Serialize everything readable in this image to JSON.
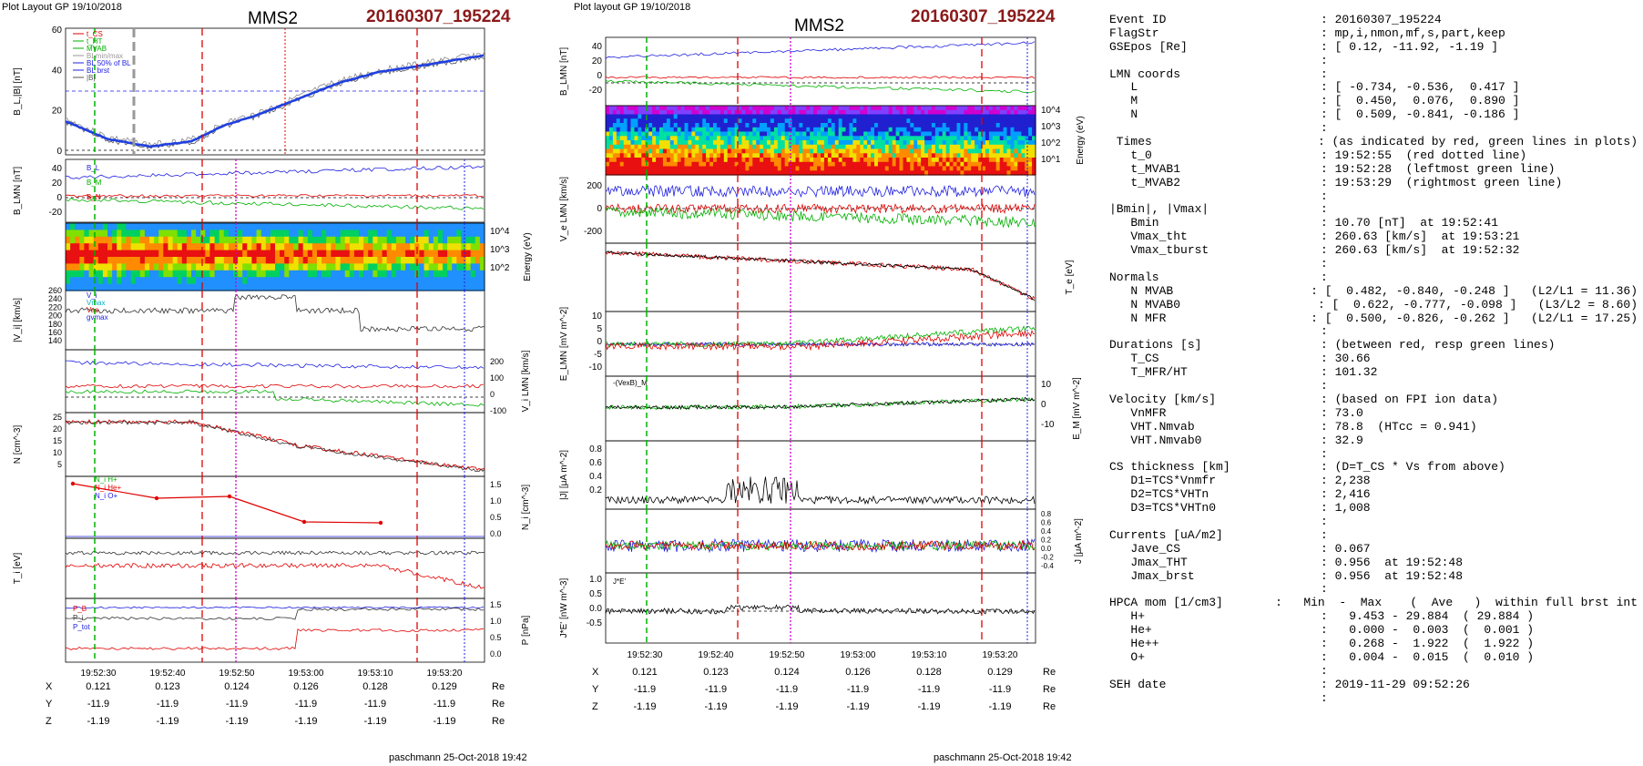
{
  "header": {
    "left_title": "Plot Layout GP 19/10/2018",
    "mid_title": "Plot layout GP 19/10/2018",
    "spacecraft": "MMS2",
    "event_id": "20160307_195224",
    "footer": "paschmann 25-Oct-2018 19:42"
  },
  "left_panels": {
    "b_ylabel": "B_L,|B| [nT]",
    "b_yticks": [
      "60",
      "40",
      "20",
      "0"
    ],
    "b_legend": [
      "t_CS",
      "t_HT",
      "MVAB",
      "BLmin/max",
      "BL 50% of BL",
      "BL brst",
      "|B|"
    ],
    "blmn_ylabel": "B_LMN [nT]",
    "blmn_yticks": [
      "40",
      "20",
      "0",
      "-20"
    ],
    "blmn_labels": [
      "B_L",
      "B_M",
      "B_N"
    ],
    "energy_ylabel": "Energy (eV)",
    "energy_yticks": [
      "10^4",
      "10^3",
      "10^2"
    ],
    "vi_ylabel": "|V_i| [km/s]",
    "vi_yticks": [
      "260",
      "240",
      "220",
      "200",
      "180",
      "160",
      "140"
    ],
    "vi_labels": [
      "V_i",
      "Vmax",
      "Vas",
      "gvmax"
    ],
    "vilmn_ylabel": "V_i LMN [km/s]",
    "vilmn_yticks": [
      "200",
      "100",
      "0",
      "-100"
    ],
    "n_ylabel": "N [cm^-3]",
    "n_yticks": [
      "25",
      "20",
      "15",
      "10",
      "5"
    ],
    "ni_ylabel": "N_i [cm^-3]",
    "ni_yticks": [
      "1.5",
      "1.0",
      "0.5",
      "0.0"
    ],
    "ni_legend": [
      "N_i H+",
      "N_i He+",
      "N_i O+"
    ],
    "ti_ylabel": "T_i [eV]",
    "p_ylabel": "P [nPa]",
    "p_yticks": [
      "1.5",
      "1.0",
      "0.5",
      "0.0"
    ],
    "p_labels": [
      "P_B",
      "P_i",
      "P_tot"
    ],
    "xticks": [
      "19:52:30",
      "19:52:40",
      "19:52:50",
      "19:53:00",
      "19:53:10",
      "19:53:20"
    ]
  },
  "mid_panels": {
    "blmn_ylabel": "B_LMN [nT]",
    "blmn_yticks": [
      "40",
      "20",
      "0",
      "-20"
    ],
    "energy_ylabel": "Energy (eV)",
    "energy_yticks": [
      "10^4",
      "10^3",
      "10^2",
      "10^1"
    ],
    "ve_ylabel": "V_e LMN [km/s]",
    "ve_yticks": [
      "200",
      "0",
      "-200"
    ],
    "te_ylabel": "T_e [eV]",
    "e_ylabel": "E_LMN [mV m^-2]",
    "e_yticks": [
      "10",
      "5",
      "0",
      "-5",
      "-10"
    ],
    "em_ylabel": "E_M [mV m^-2]",
    "em_yticks": [
      "10",
      "0",
      "-10"
    ],
    "em_legend": "-(VexB)_M",
    "j_ylabel": "|J| [μA m^-2]",
    "j_yticks": [
      "0.8",
      "0.6",
      "0.4",
      "0.2"
    ],
    "jlmn_ylabel": "J [μA m^-2]",
    "jlmn_yticks": [
      "0.8",
      "0.6",
      "0.4",
      "0.2",
      "0.0",
      "-0.2",
      "-0.4"
    ],
    "je_ylabel": "J*E' [nW m^-3]",
    "je_yticks": [
      "1.0",
      "0.5",
      "0.0",
      "-0.5"
    ],
    "je_legend": "J*E'",
    "xticks": [
      "19:52:30",
      "19:52:40",
      "19:52:50",
      "19:53:00",
      "19:53:10",
      "19:53:20"
    ]
  },
  "positions": {
    "rows": [
      {
        "label": "X",
        "values": [
          "0.121",
          "0.123",
          "0.124",
          "0.126",
          "0.128",
          "0.129"
        ],
        "unit": "Re"
      },
      {
        "label": "Y",
        "values": [
          "-11.9",
          "-11.9",
          "-11.9",
          "-11.9",
          "-11.9",
          "-11.9"
        ],
        "unit": "Re"
      },
      {
        "label": "Z",
        "values": [
          "-1.19",
          "-1.19",
          "-1.19",
          "-1.19",
          "-1.19",
          "-1.19"
        ],
        "unit": "Re"
      }
    ]
  },
  "info": [
    {
      "l": "Event ID",
      "v": ": 20160307_195224"
    },
    {
      "l": "FlagStr",
      "v": ": mp,i,nmon,mf,s,part,keep"
    },
    {
      "l": "GSEpos [Re]",
      "v": ": [ 0.12, -11.92, -1.19 ]"
    },
    {
      "l": "",
      "v": ":"
    },
    {
      "l": "LMN coords",
      "v": ":"
    },
    {
      "l": "   L",
      "v": ": [ -0.734, -0.536,  0.417 ]"
    },
    {
      "l": "   M",
      "v": ": [  0.450,  0.076,  0.890 ]"
    },
    {
      "l": "   N",
      "v": ": [  0.509, -0.841, -0.186 ]"
    },
    {
      "l": "",
      "v": ":"
    },
    {
      "l": " Times",
      "v": ": (as indicated by red, green lines in plots)"
    },
    {
      "l": "   t_0",
      "v": ": 19:52:55  (red dotted line)"
    },
    {
      "l": "   t_MVAB1",
      "v": ": 19:52:28  (leftmost green line)"
    },
    {
      "l": "   t_MVAB2",
      "v": ": 19:53:29  (rightmost green line)"
    },
    {
      "l": "",
      "v": ":"
    },
    {
      "l": "|Bmin|, |Vmax|",
      "v": ":"
    },
    {
      "l": "   Bmin",
      "v": ": 10.70 [nT]  at 19:52:41"
    },
    {
      "l": "   Vmax_tht",
      "v": ": 260.63 [km/s]  at 19:53:21"
    },
    {
      "l": "   Vmax_tburst",
      "v": ": 260.63 [km/s]  at 19:52:32"
    },
    {
      "l": "",
      "v": ":"
    },
    {
      "l": "Normals",
      "v": ":"
    },
    {
      "l": "   N MVAB",
      "v": ": [  0.482, -0.840, -0.248 ]   (L2/L1 = 11.36)"
    },
    {
      "l": "   N MVAB0",
      "v": ": [  0.622, -0.777, -0.098 ]   (L3/L2 = 8.60)"
    },
    {
      "l": "   N MFR",
      "v": ": [  0.500, -0.826, -0.262 ]   (L2/L1 = 17.25)"
    },
    {
      "l": "",
      "v": ":"
    },
    {
      "l": "Durations [s]",
      "v": ": (between red, resp green lines)"
    },
    {
      "l": "   T_CS",
      "v": ": 30.66"
    },
    {
      "l": "   T_MFR/HT",
      "v": ": 101.32"
    },
    {
      "l": "",
      "v": ":"
    },
    {
      "l": "Velocity [km/s]",
      "v": ": (based on FPI ion data)"
    },
    {
      "l": "   VnMFR",
      "v": ": 73.0"
    },
    {
      "l": "   VHT.Nmvab",
      "v": ": 78.8  (HTcc = 0.941)"
    },
    {
      "l": "   VHT.Nmvab0",
      "v": ": 32.9"
    },
    {
      "l": "",
      "v": ":"
    },
    {
      "l": "CS thickness [km]",
      "v": ": (D=T_CS * Vs from above)"
    },
    {
      "l": "   D1=TCS*Vnmfr",
      "v": ": 2,238"
    },
    {
      "l": "   D2=TCS*VHTn",
      "v": ": 2,416"
    },
    {
      "l": "   D3=TCS*VHTn0",
      "v": ": 1,008"
    },
    {
      "l": "",
      "v": ":"
    },
    {
      "l": "Currents [uA/m2]",
      "v": ":"
    },
    {
      "l": "   Jave_CS",
      "v": ": 0.067"
    },
    {
      "l": "   Jmax_THT",
      "v": ": 0.956  at 19:52:48"
    },
    {
      "l": "   Jmax_brst",
      "v": ": 0.956  at 19:52:48"
    },
    {
      "l": "",
      "v": ":"
    },
    {
      "l": "HPCA mom [1/cm3]",
      "v": ":   Min  -  Max    (  Ave   )  within full brst int"
    },
    {
      "l": "   H+",
      "v": ":   9.453 - 29.884  ( 29.884 )"
    },
    {
      "l": "   He+",
      "v": ":   0.000 -  0.003  (  0.001 )"
    },
    {
      "l": "   He++",
      "v": ":   0.268 -  1.922  (  1.922 )"
    },
    {
      "l": "   O+",
      "v": ":   0.004 -  0.015  (  0.010 )"
    },
    {
      "l": "",
      "v": ":"
    },
    {
      "l": "SEH date",
      "v": ": 2019-11-29 09:52:26"
    },
    {
      "l": "",
      "v": ":"
    }
  ],
  "colors": {
    "event": "#8b1a1a",
    "red": "#e00000",
    "green": "#00b000",
    "blue": "#2020e0",
    "magenta": "#d000d0"
  }
}
